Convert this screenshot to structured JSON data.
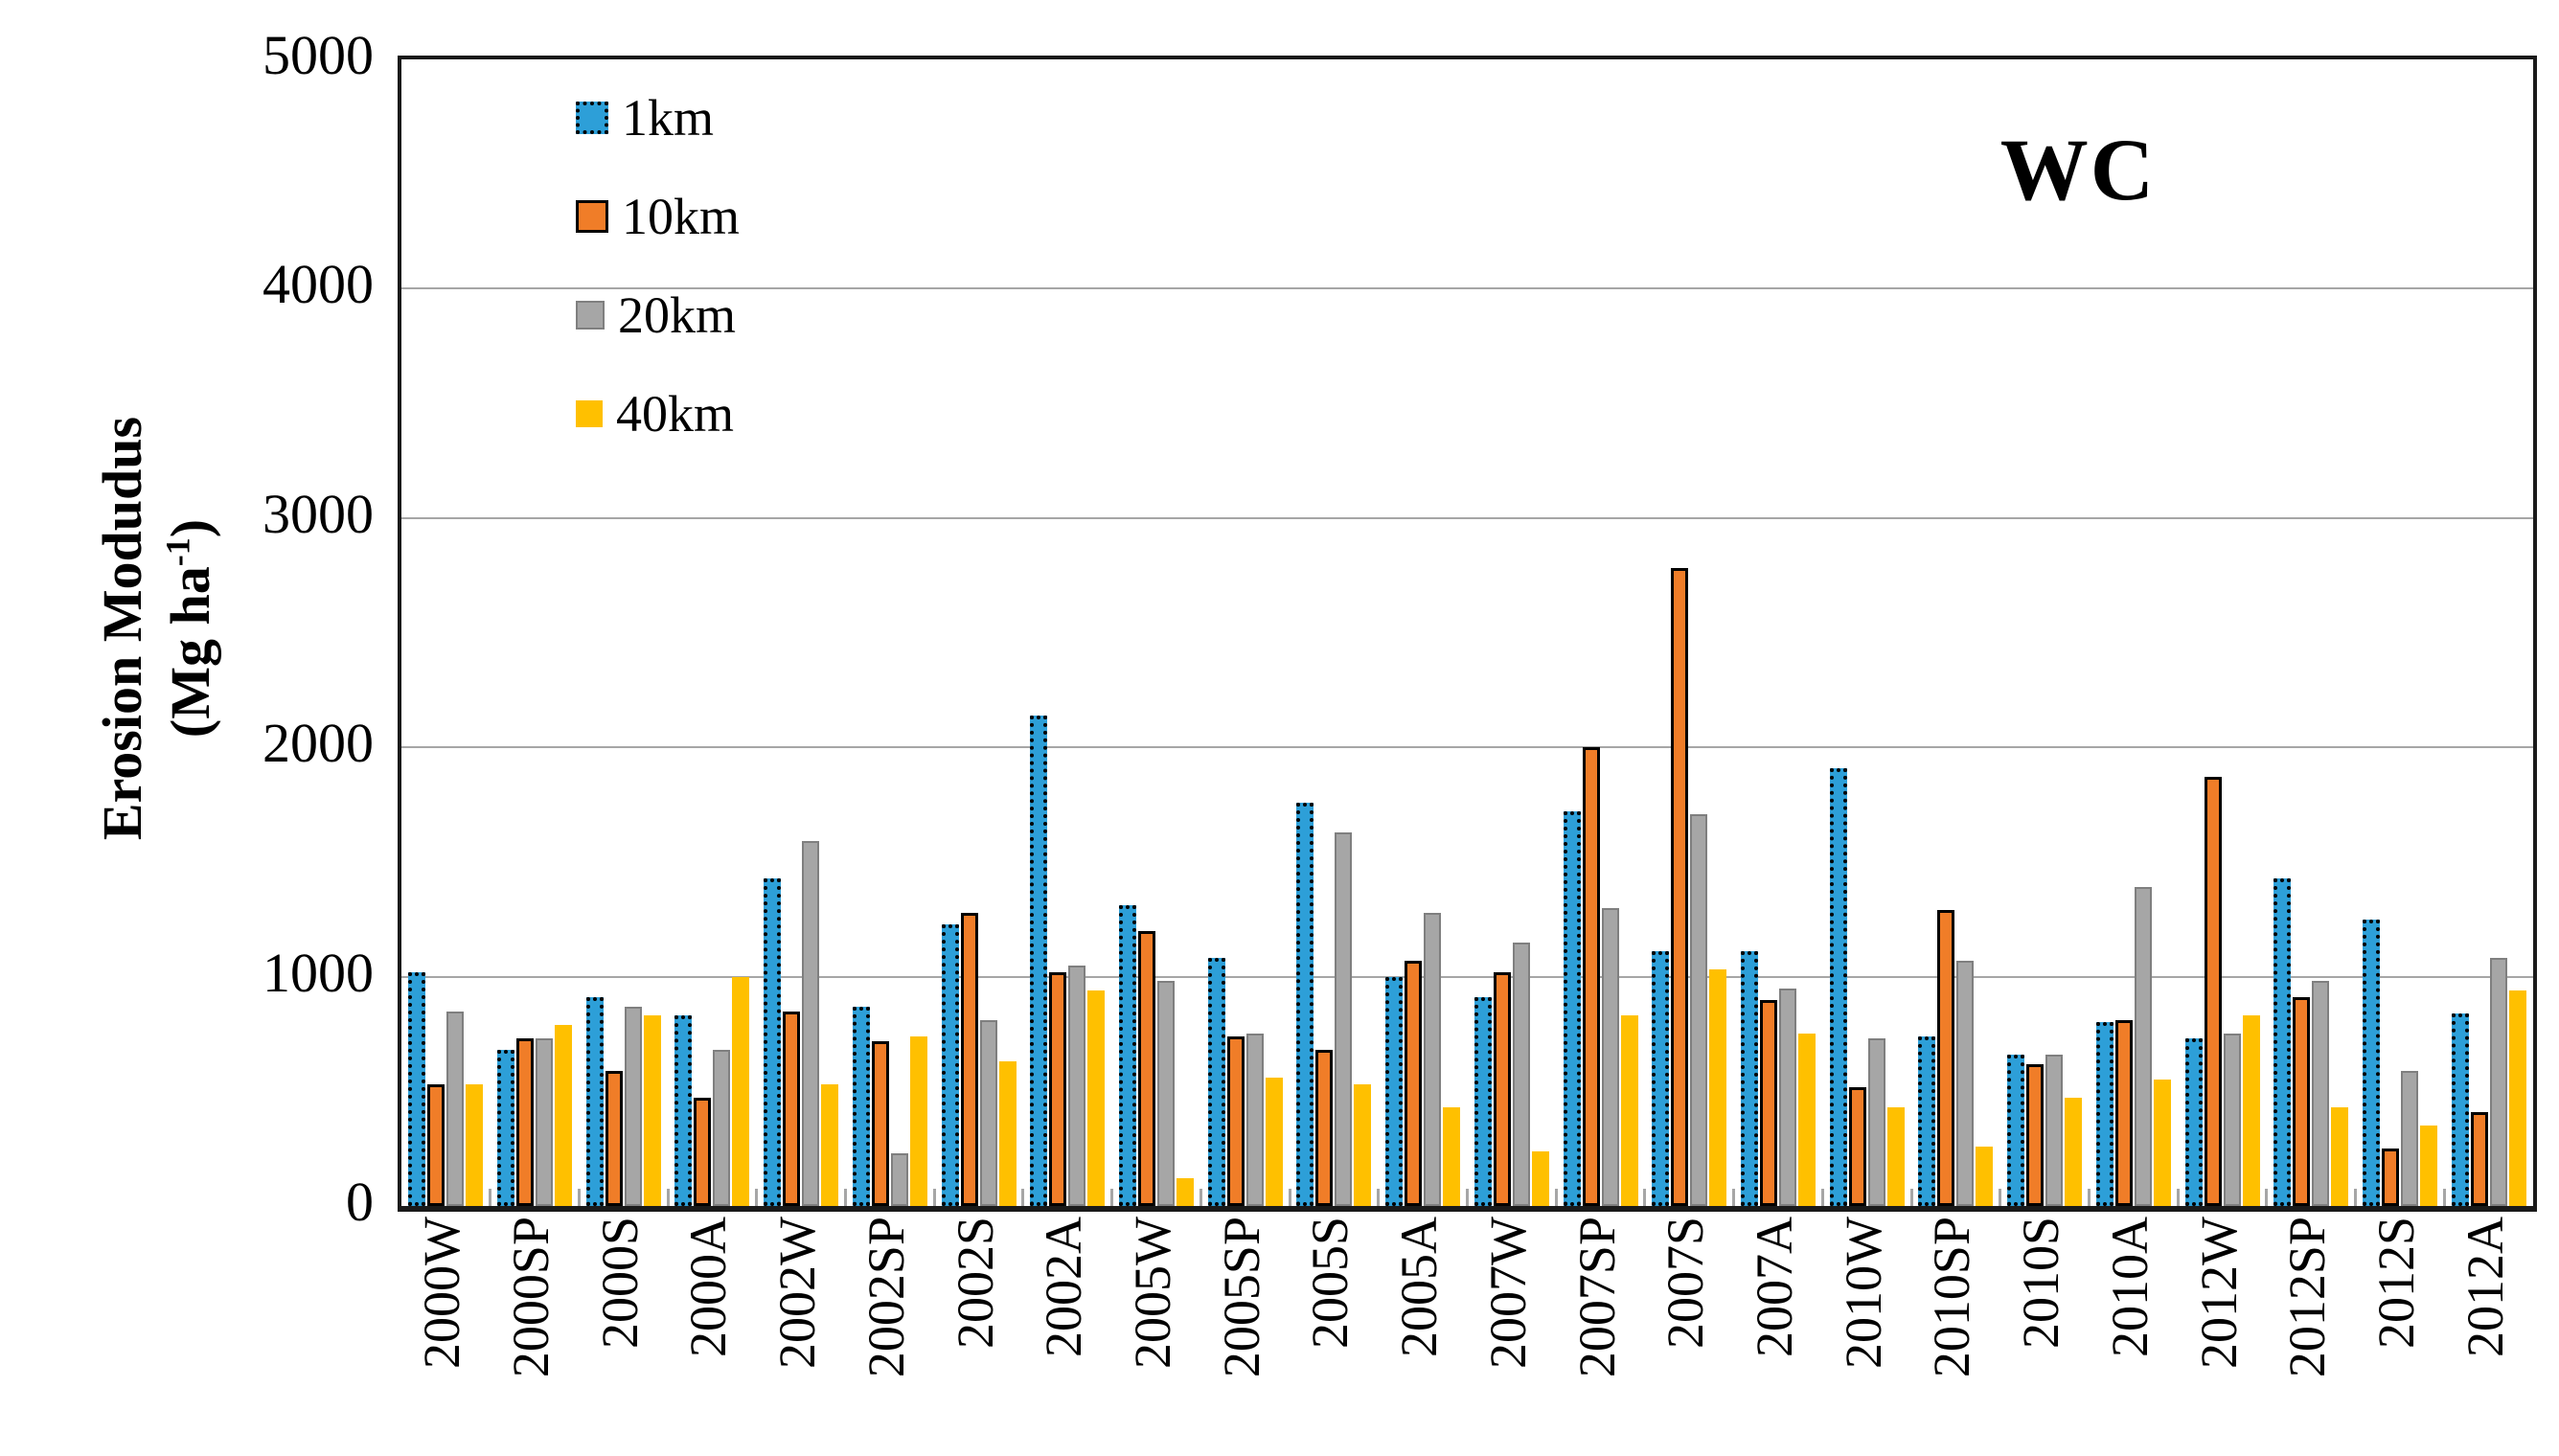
{
  "chart_data": {
    "type": "bar",
    "title": "WC",
    "ylabel": "Erosion Modudus (Mg ha-1)",
    "ylabel_line1": "Erosion Modudus",
    "ylabel_line2_pre": "(Mg ha",
    "ylabel_line2_sup": "-1",
    "ylabel_line2_post": ")",
    "ylim": [
      0,
      5000
    ],
    "yticks": [
      5000,
      4000,
      3000,
      2000,
      1000,
      0
    ],
    "grid": true,
    "legend_position": "upper-left-inside",
    "categories": [
      "2000W",
      "2000SP",
      "2000S",
      "2000A",
      "2002W",
      "2002SP",
      "2002S",
      "2002A",
      "2005W",
      "2005SP",
      "2005S",
      "2005A",
      "2007W",
      "2007SP",
      "2007S",
      "2007A",
      "2010W",
      "2010SP",
      "2010S",
      "2010A",
      "2012W",
      "2012SP",
      "2012S",
      "2012A"
    ],
    "series": [
      {
        "name": "1km",
        "color": "#2d9fd8",
        "outline": "dotted-black",
        "values": [
          1020,
          680,
          910,
          830,
          1430,
          870,
          1230,
          2140,
          1310,
          1080,
          1760,
          1000,
          910,
          1720,
          1110,
          1110,
          1910,
          740,
          660,
          800,
          730,
          1430,
          1250,
          840
        ]
      },
      {
        "name": "10km",
        "color": "#f07d28",
        "outline": "solid-black",
        "values": [
          530,
          730,
          590,
          470,
          850,
          720,
          1280,
          1020,
          1200,
          740,
          680,
          1070,
          1020,
          2000,
          2780,
          900,
          520,
          1290,
          620,
          810,
          1870,
          910,
          250,
          410
        ]
      },
      {
        "name": "20km",
        "color": "#a6a6a6",
        "outline": "solid-gray",
        "values": [
          850,
          730,
          870,
          680,
          1590,
          230,
          810,
          1050,
          980,
          750,
          1630,
          1280,
          1150,
          1300,
          1710,
          950,
          730,
          1070,
          660,
          1390,
          750,
          980,
          590,
          1080
        ]
      },
      {
        "name": "40km",
        "color": "#ffc000",
        "outline": "none",
        "values": [
          530,
          790,
          830,
          1000,
          530,
          740,
          630,
          940,
          120,
          560,
          530,
          430,
          240,
          830,
          1030,
          750,
          430,
          260,
          470,
          550,
          830,
          430,
          350,
          940
        ]
      }
    ]
  }
}
